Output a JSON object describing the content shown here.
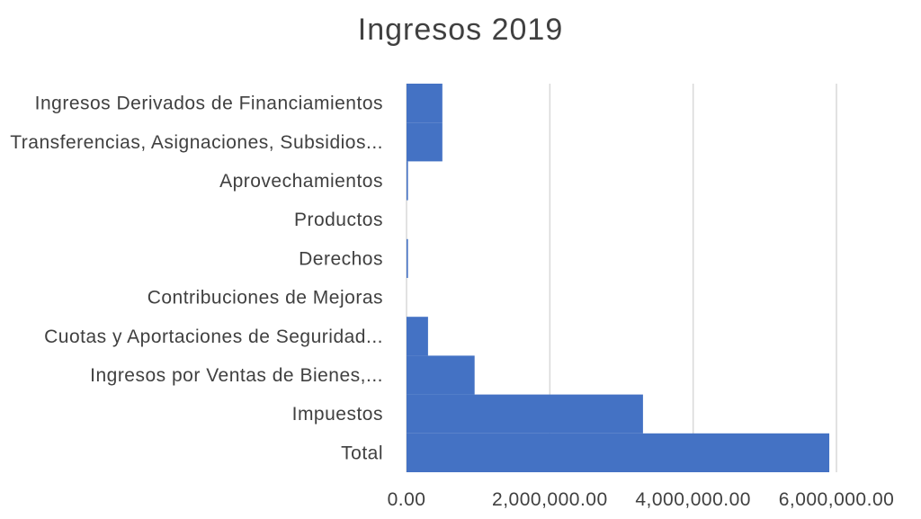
{
  "chart_data": {
    "type": "bar",
    "orientation": "horizontal",
    "title": "Ingresos 2019",
    "xlabel": "",
    "ylabel": "",
    "categories": [
      "Ingresos Derivados de Financiamientos",
      "Transferencias, Asignaciones, Subsidios...",
      "Aprovechamientos",
      "Productos",
      "Derechos",
      "Contribuciones de Mejoras",
      "Cuotas y Aportaciones de Seguridad...",
      "Ingresos por Ventas de Bienes,...",
      "Impuestos",
      "Total"
    ],
    "values": [
      500000,
      500000,
      20000,
      0,
      20000,
      0,
      300000,
      950000,
      3300000,
      5900000
    ],
    "xlim": [
      0,
      6000000
    ],
    "xticks": [
      0,
      2000000,
      4000000,
      6000000
    ],
    "xtick_labels": [
      "0.00",
      "2,000,000.00",
      "4,000,000.00",
      "6,000,000.00"
    ],
    "grid": true,
    "legend": "none",
    "bar_color": "#4472C4",
    "grid_color": "#D9D9D9",
    "text_color": "#404040"
  }
}
